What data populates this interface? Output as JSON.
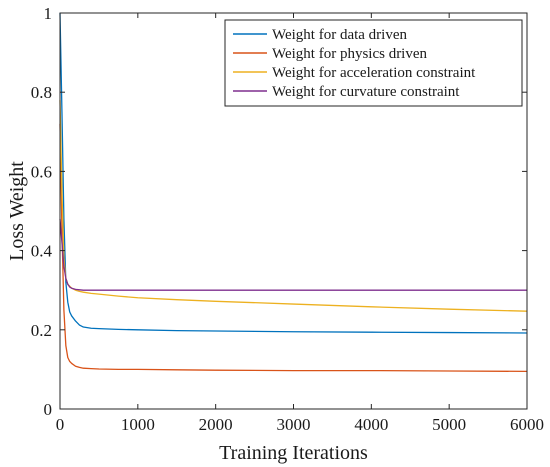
{
  "chart_data": {
    "type": "line",
    "title": "",
    "xlabel": "Training Iterations",
    "ylabel": "Loss Weight",
    "xlim": [
      0,
      6000
    ],
    "ylim": [
      0,
      1
    ],
    "xticks": [
      0,
      1000,
      2000,
      3000,
      4000,
      5000,
      6000
    ],
    "yticks": [
      0,
      0.2,
      0.4,
      0.6,
      0.8,
      1
    ],
    "xtick_labels": [
      "0",
      "1000",
      "2000",
      "3000",
      "4000",
      "5000",
      "6000"
    ],
    "ytick_labels": [
      "0",
      "0.2",
      "0.4",
      "0.6",
      "0.8",
      "1"
    ],
    "grid": false,
    "legend_position": "top-right",
    "series": [
      {
        "name": "Weight for data driven",
        "color": "#0072BD",
        "x": [
          0,
          25,
          50,
          75,
          100,
          125,
          150,
          200,
          250,
          300,
          400,
          500,
          750,
          1000,
          1500,
          2000,
          3000,
          4000,
          5000,
          6000
        ],
        "y": [
          1.0,
          0.75,
          0.48,
          0.32,
          0.27,
          0.245,
          0.235,
          0.222,
          0.212,
          0.207,
          0.204,
          0.203,
          0.201,
          0.2,
          0.198,
          0.197,
          0.195,
          0.194,
          0.193,
          0.192
        ]
      },
      {
        "name": "Weight for physics driven",
        "color": "#D95319",
        "x": [
          0,
          25,
          50,
          75,
          100,
          125,
          150,
          200,
          250,
          300,
          400,
          500,
          750,
          1000,
          1500,
          2000,
          3000,
          4000,
          5000,
          6000
        ],
        "y": [
          0.72,
          0.45,
          0.25,
          0.16,
          0.13,
          0.12,
          0.115,
          0.108,
          0.105,
          0.103,
          0.102,
          0.101,
          0.1,
          0.1,
          0.099,
          0.098,
          0.097,
          0.097,
          0.096,
          0.095
        ]
      },
      {
        "name": "Weight for acceleration constraint",
        "color": "#EDB120",
        "x": [
          0,
          25,
          50,
          75,
          100,
          125,
          150,
          200,
          250,
          300,
          400,
          500,
          750,
          1000,
          1500,
          2000,
          3000,
          4000,
          5000,
          6000
        ],
        "y": [
          0.78,
          0.55,
          0.38,
          0.33,
          0.315,
          0.31,
          0.305,
          0.3,
          0.297,
          0.295,
          0.292,
          0.29,
          0.285,
          0.281,
          0.276,
          0.272,
          0.265,
          0.258,
          0.252,
          0.247
        ]
      },
      {
        "name": "Weight for curvature constraint",
        "color": "#7E2F8E",
        "x": [
          0,
          25,
          50,
          75,
          100,
          125,
          150,
          200,
          250,
          300,
          400,
          500,
          750,
          1000,
          1500,
          2000,
          3000,
          4000,
          5000,
          6000
        ],
        "y": [
          0.48,
          0.42,
          0.36,
          0.33,
          0.315,
          0.308,
          0.305,
          0.302,
          0.301,
          0.3,
          0.3,
          0.3,
          0.3,
          0.3,
          0.3,
          0.3,
          0.3,
          0.3,
          0.3,
          0.3
        ]
      }
    ]
  }
}
